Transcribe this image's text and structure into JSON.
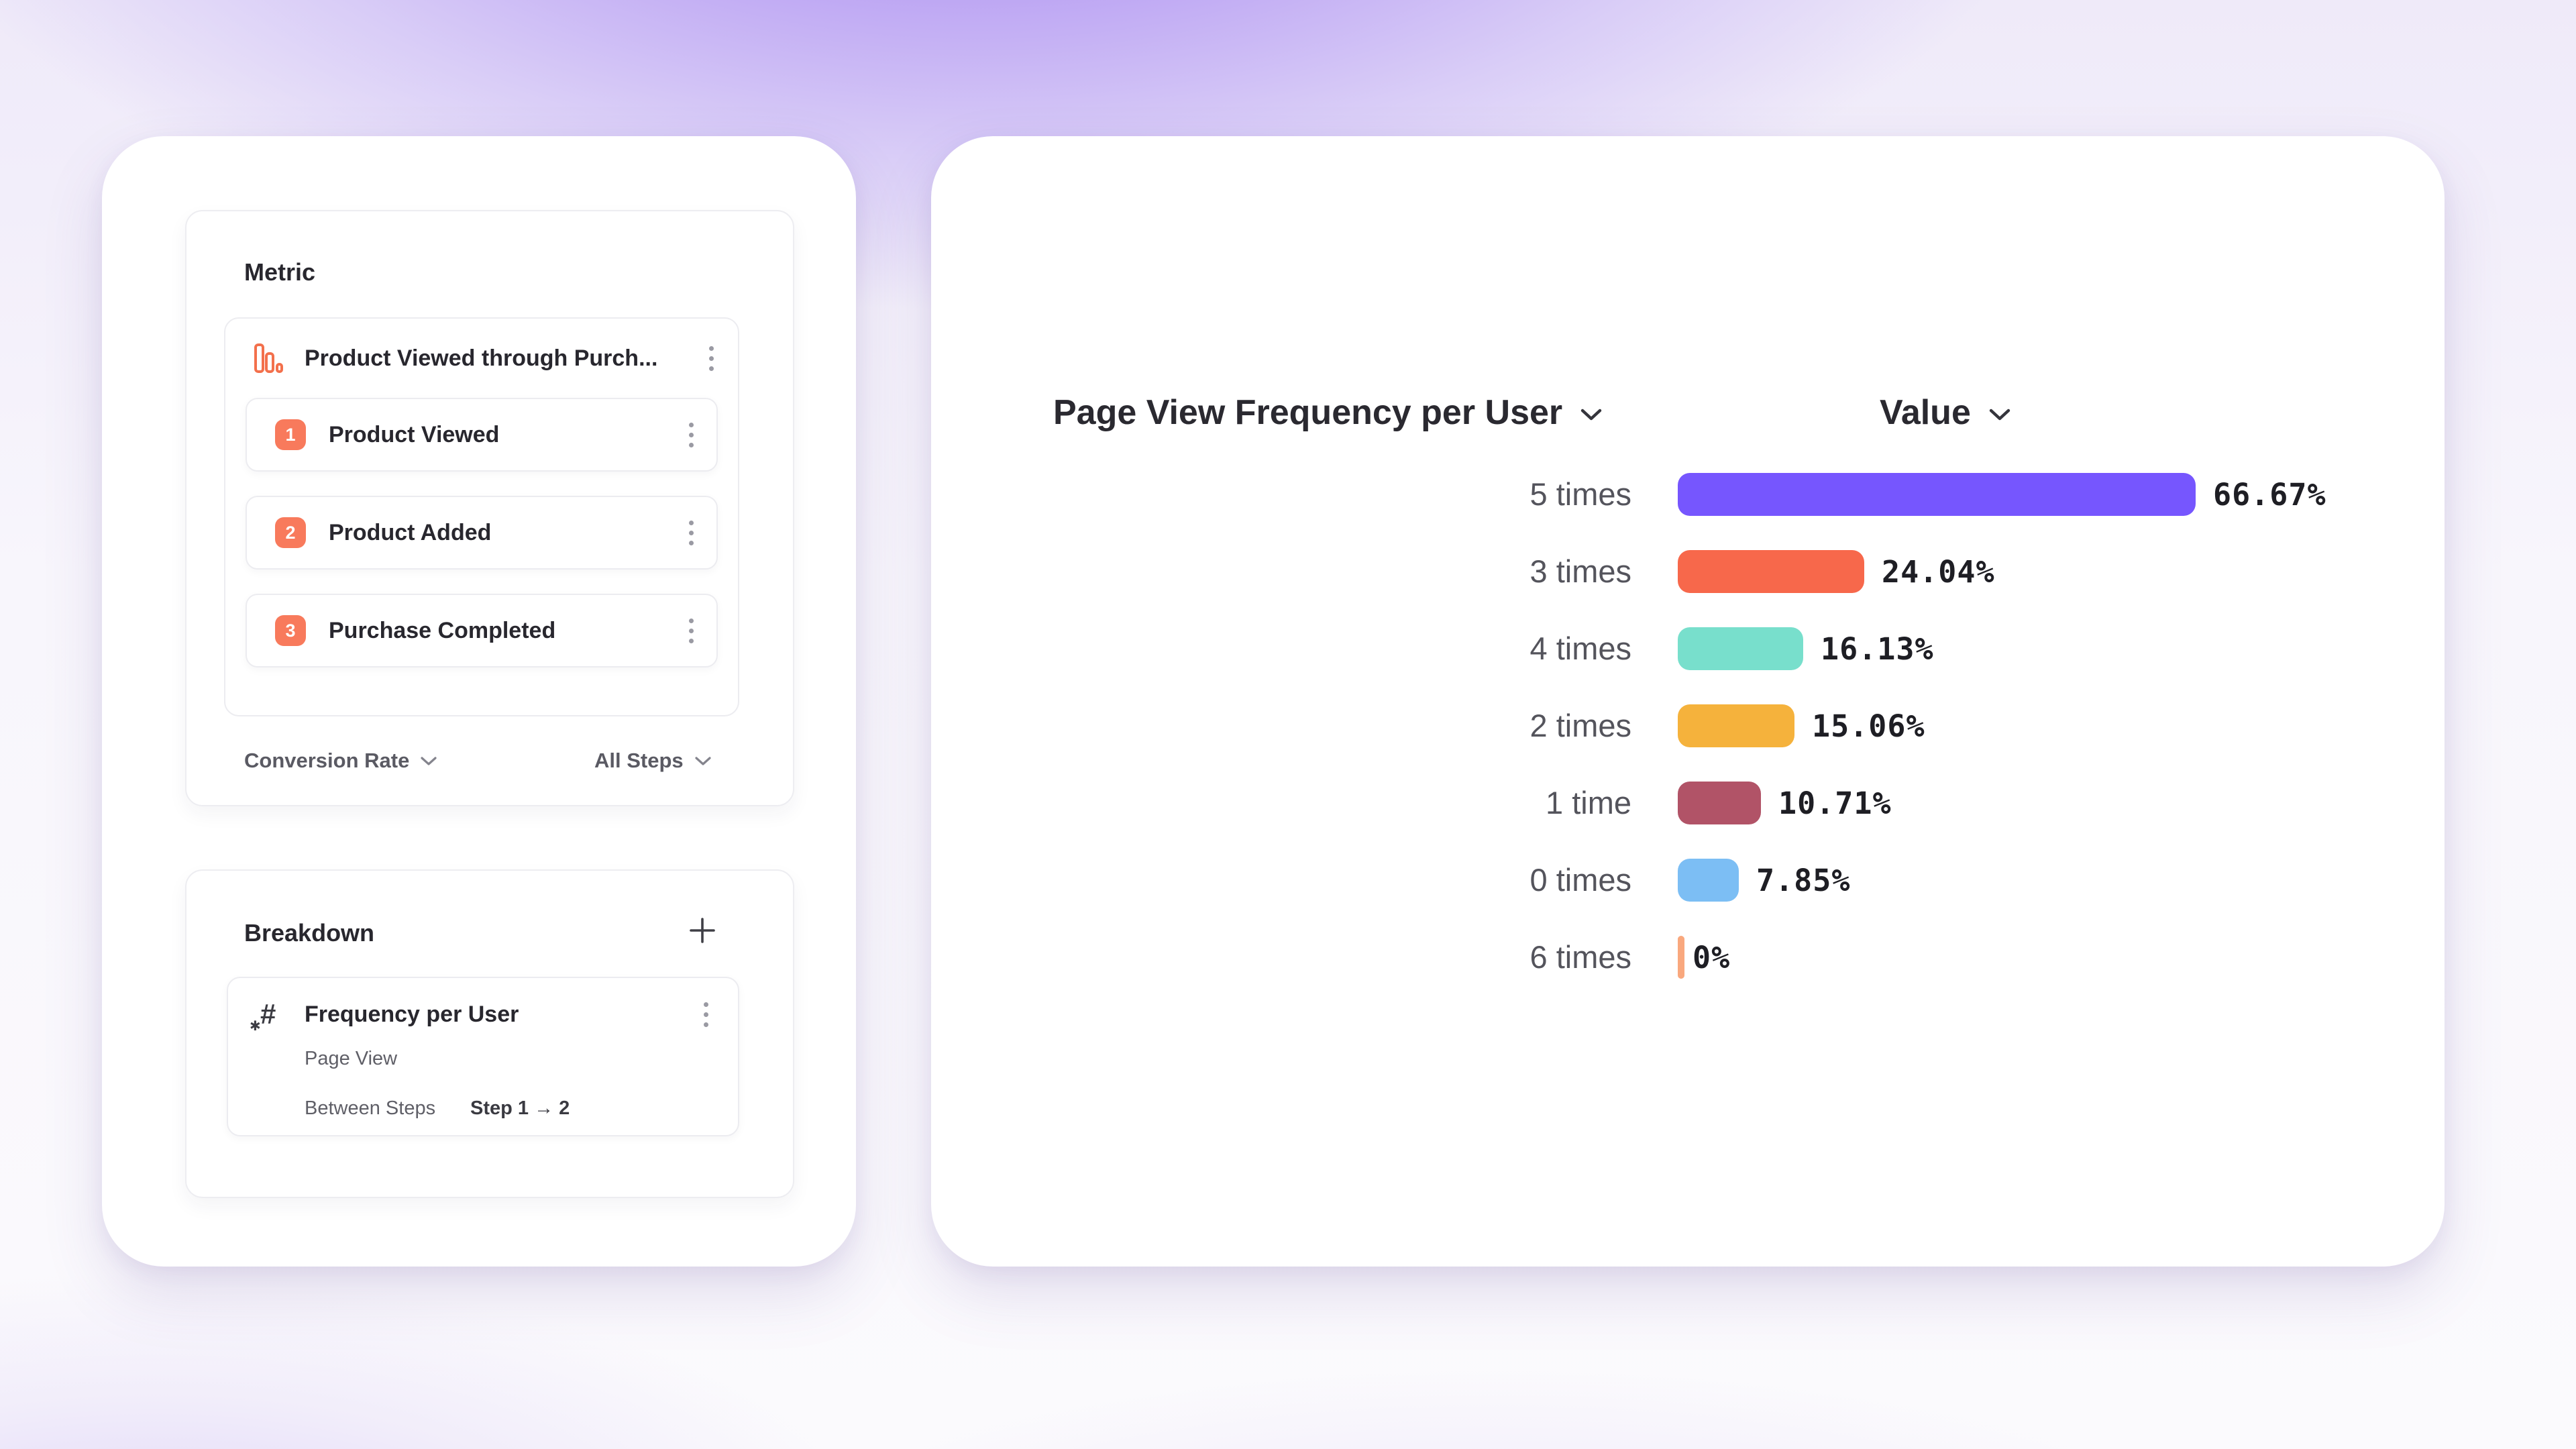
{
  "metric_panel": {
    "title": "Metric",
    "funnel": {
      "name": "Product Viewed through Purch...",
      "steps": [
        {
          "index": "1",
          "label": "Product Viewed"
        },
        {
          "index": "2",
          "label": "Product Added"
        },
        {
          "index": "3",
          "label": "Purchase Completed"
        }
      ],
      "footer": {
        "left_dropdown": "Conversion Rate",
        "right_dropdown": "All Steps"
      }
    }
  },
  "breakdown_panel": {
    "title": "Breakdown",
    "item": {
      "name": "Frequency per User",
      "event": "Page View",
      "between_steps_label": "Between Steps",
      "between_steps_value": "Step 1 → 2"
    }
  },
  "chart_data": {
    "type": "bar",
    "orientation": "horizontal",
    "title": "Page View Frequency per User",
    "value_header": "Value",
    "categories": [
      "5 times",
      "3 times",
      "4 times",
      "2 times",
      "1 time",
      "0 times",
      "6 times"
    ],
    "values": [
      66.67,
      24.04,
      16.13,
      15.06,
      10.71,
      7.85,
      0
    ],
    "value_labels": [
      "66.67%",
      "24.04%",
      "16.13%",
      "15.06%",
      "10.71%",
      "7.85%",
      "0%"
    ],
    "bar_colors": [
      "#7656fe",
      "#f7684b",
      "#78dfcc",
      "#f5b23c",
      "#b15367",
      "#7cbef4",
      "#f9a87e"
    ],
    "xlim": [
      0,
      100
    ],
    "grid": false,
    "legend": "none"
  },
  "colors": {
    "accent_coral": "#f87a5c",
    "text_dark": "#28272e",
    "text_gray": "#5a5a63",
    "border": "#ececf0"
  }
}
